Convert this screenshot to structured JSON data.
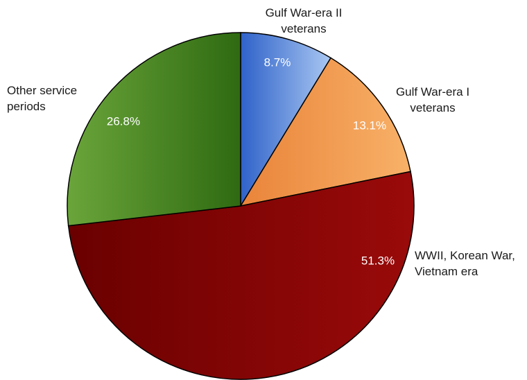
{
  "chart_data": {
    "type": "pie",
    "title": "",
    "start_angle_deg": 0,
    "direction": "clockwise",
    "legend": "none",
    "slices": [
      {
        "name": "gulf-war-era-ii",
        "label": [
          "Gulf War-era II",
          "veterans"
        ],
        "value": 8.7,
        "pct_label": "8.7%",
        "colors": [
          "#2f62c9",
          "#a9c7f2"
        ]
      },
      {
        "name": "gulf-war-era-i",
        "label": [
          "Gulf War-era I",
          "veterans"
        ],
        "value": 13.1,
        "pct_label": "13.1%",
        "colors": [
          "#e9843a",
          "#f8b168"
        ]
      },
      {
        "name": "wwii-korean-vietnam",
        "label": [
          "WWII, Korean War,",
          "Vietnam era"
        ],
        "value": 51.3,
        "pct_label": "51.3%",
        "colors": [
          "#6a0000",
          "#9a0a0a"
        ]
      },
      {
        "name": "other-service-periods",
        "label": [
          "Other service",
          "periods"
        ],
        "value": 26.8,
        "pct_label": "26.8%",
        "colors": [
          "#6aa53a",
          "#2f6a12"
        ]
      }
    ]
  }
}
